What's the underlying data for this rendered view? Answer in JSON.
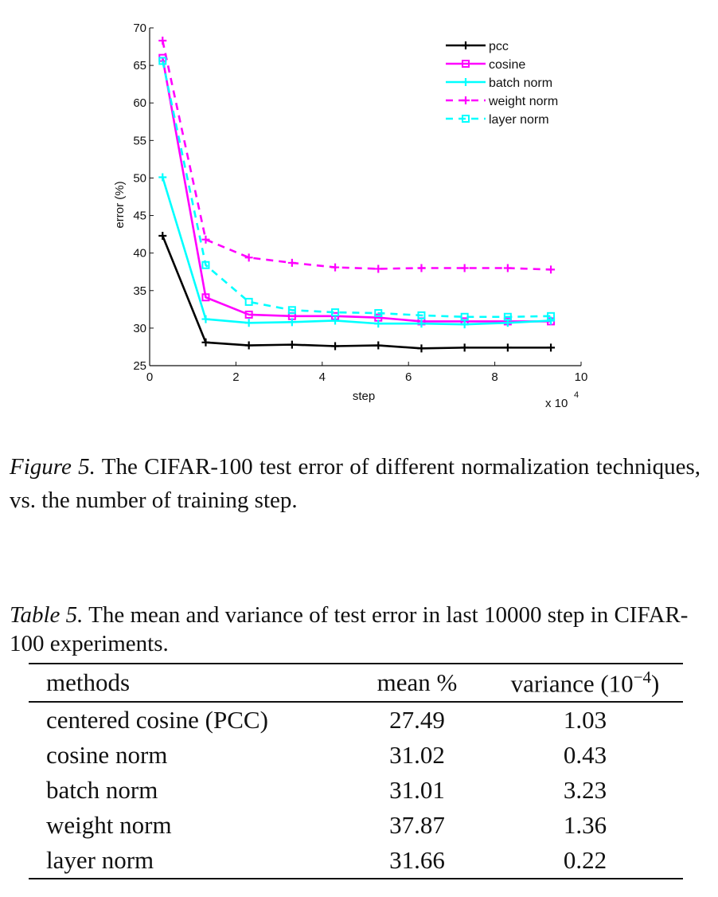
{
  "chart_data": {
    "type": "line",
    "xlabel": "step",
    "ylabel": "error (%)",
    "x_multiplier_label": "x 10",
    "x_multiplier_exponent": "4",
    "xlim": [
      0,
      10
    ],
    "ylim": [
      25,
      70
    ],
    "xticks": [
      0,
      2,
      4,
      6,
      8,
      10
    ],
    "yticks": [
      25,
      30,
      35,
      40,
      45,
      50,
      55,
      60,
      65,
      70
    ],
    "x": [
      0.3,
      1.3,
      2.3,
      3.3,
      4.3,
      5.3,
      6.3,
      7.3,
      8.3,
      9.3
    ],
    "legend_position": "top-right",
    "grid": false,
    "series": [
      {
        "name": "pcc",
        "color": "#000000",
        "dash": "solid",
        "marker": "plus",
        "values": [
          42.3,
          28.1,
          27.7,
          27.8,
          27.6,
          27.7,
          27.3,
          27.4,
          27.4,
          27.4
        ]
      },
      {
        "name": "cosine",
        "color": "#ff00ff",
        "dash": "solid",
        "marker": "square",
        "values": [
          66.0,
          34.1,
          31.8,
          31.6,
          31.6,
          31.4,
          30.9,
          30.9,
          30.9,
          30.9
        ]
      },
      {
        "name": "batch norm",
        "color": "#00ffff",
        "dash": "solid",
        "marker": "plus",
        "values": [
          50.1,
          31.2,
          30.7,
          30.8,
          31.0,
          30.6,
          30.6,
          30.5,
          30.7,
          31.0
        ]
      },
      {
        "name": "weight norm",
        "color": "#ff00ff",
        "dash": "dashed",
        "marker": "plus",
        "values": [
          68.3,
          41.8,
          39.4,
          38.7,
          38.1,
          37.9,
          38.0,
          38.0,
          38.0,
          37.8
        ]
      },
      {
        "name": "layer norm",
        "color": "#00ffff",
        "dash": "dashed",
        "marker": "square",
        "values": [
          65.6,
          38.4,
          33.5,
          32.4,
          32.1,
          32.0,
          31.7,
          31.5,
          31.5,
          31.6
        ]
      }
    ]
  },
  "figure_caption": {
    "lead": "Figure 5.",
    "text": " The CIFAR-100 test error of different normalization techniques, vs. the number of training step."
  },
  "table_caption": {
    "lead": "Table 5.",
    "text": "  The mean and variance of test error in last 10000 step in CIFAR-100 experiments."
  },
  "table": {
    "headers": [
      "methods",
      "mean %",
      "variance (10",
      "−4",
      ")"
    ],
    "rows": [
      [
        "centered cosine (PCC)",
        "27.49",
        "1.03"
      ],
      [
        "cosine norm",
        "31.02",
        "0.43"
      ],
      [
        "batch norm",
        "31.01",
        "3.23"
      ],
      [
        "weight norm",
        "37.87",
        "1.36"
      ],
      [
        "layer norm",
        "31.66",
        "0.22"
      ]
    ]
  }
}
